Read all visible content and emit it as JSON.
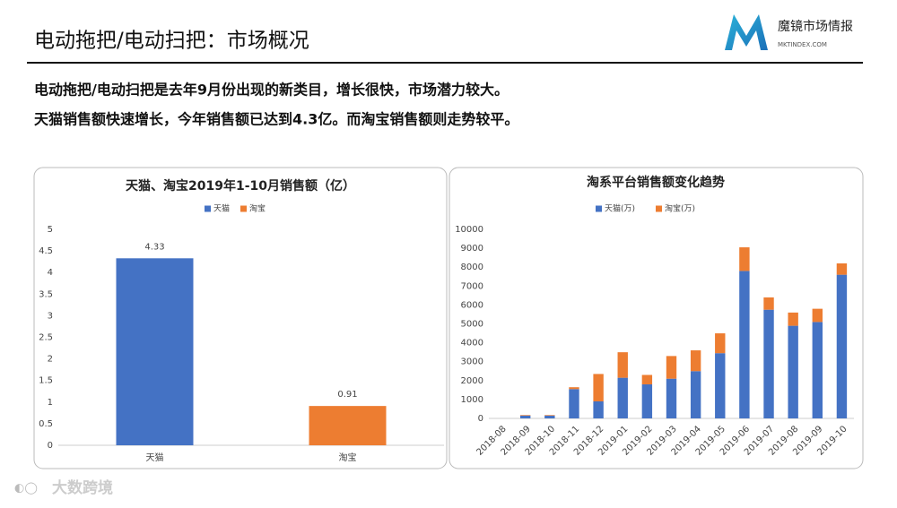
{
  "header": {
    "title": "电动拖把/电动扫把：市场概况",
    "logo_name": "魔镜市场情报",
    "logo_site": "MKTINDEX.COM"
  },
  "body": [
    "电动拖把/电动扫把是去年9月份出现的新类目，增长很快，市场潜力较大。",
    "天猫销售额快速增长，今年销售额已达到4.3亿。而淘宝销售额则走势较平。"
  ],
  "watermark": "大数跨境",
  "chart_data": [
    {
      "type": "bar",
      "title": "天猫、淘宝2019年1-10月销售额（亿）",
      "categories": [
        "天猫",
        "淘宝"
      ],
      "series": [
        {
          "name": "天猫",
          "color": "#4472c4",
          "values": [
            4.33,
            null
          ]
        },
        {
          "name": "淘宝",
          "color": "#ed7d31",
          "values": [
            null,
            0.91
          ]
        }
      ],
      "ylim": [
        0,
        5
      ],
      "yticks": [
        0,
        0.5,
        1,
        1.5,
        2,
        2.5,
        3,
        3.5,
        4,
        4.5,
        5
      ],
      "grid": false,
      "legend": "top",
      "data_labels": true
    },
    {
      "type": "stacked_bar",
      "title": "淘系平台销售额变化趋势",
      "categories": [
        "2018-08",
        "2018-09",
        "2018-10",
        "2018-11",
        "2018-12",
        "2019-01",
        "2019-02",
        "2019-03",
        "2019-04",
        "2019-05",
        "2019-06",
        "2019-07",
        "2019-08",
        "2019-09",
        "2019-10"
      ],
      "series": [
        {
          "name": "天猫(万)",
          "color": "#4472c4",
          "values": [
            0,
            150,
            150,
            1550,
            900,
            2150,
            1800,
            2100,
            2500,
            3450,
            7800,
            5750,
            4900,
            5100,
            7600
          ]
        },
        {
          "name": "淘宝(万)",
          "color": "#ed7d31",
          "values": [
            0,
            30,
            30,
            100,
            1450,
            1350,
            500,
            1200,
            1100,
            1050,
            1250,
            650,
            700,
            700,
            600
          ]
        }
      ],
      "ylim": [
        0,
        10000
      ],
      "yticks": [
        0,
        1000,
        2000,
        3000,
        4000,
        5000,
        6000,
        7000,
        8000,
        9000,
        10000
      ],
      "grid": false,
      "legend": "top"
    }
  ]
}
